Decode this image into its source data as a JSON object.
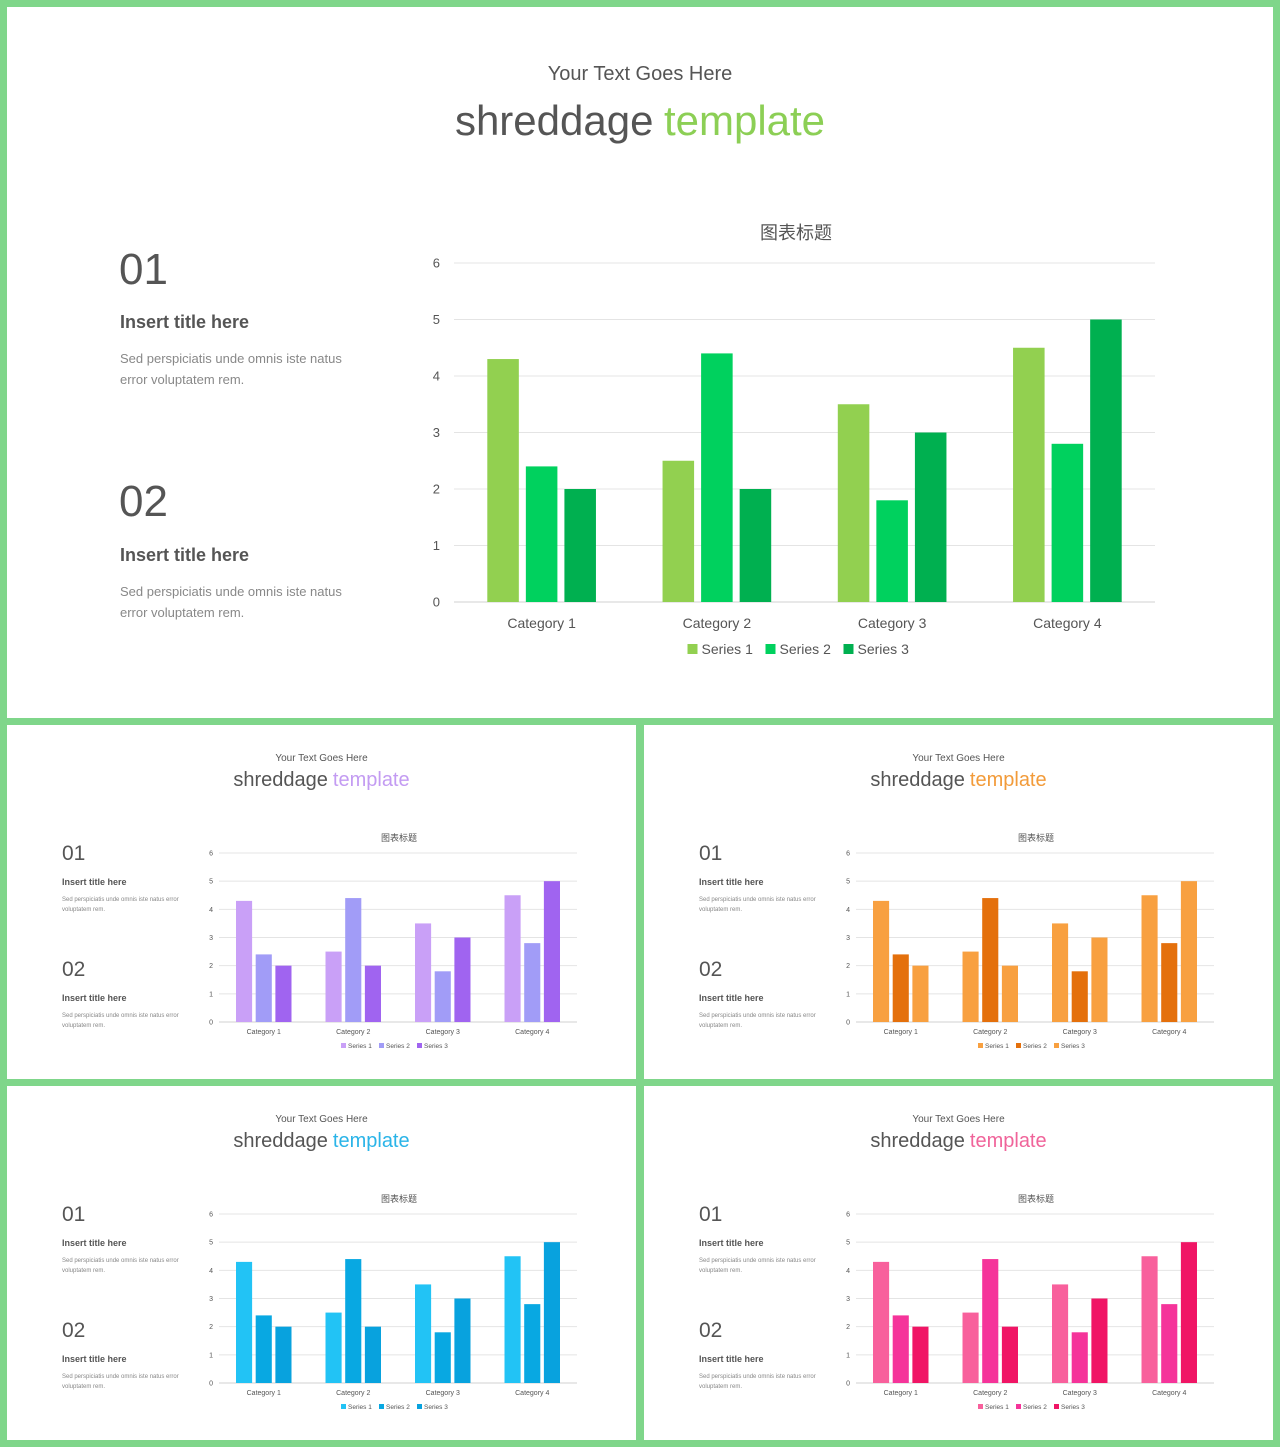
{
  "slides": [
    {
      "subtitle": "Your Text Goes Here",
      "title_main": "shreddage",
      "title_accent": "template",
      "item1_num": "01",
      "item1_title": "Insert title here",
      "item1_text": "Sed perspiciatis unde omnis iste natus error voluptatem rem.",
      "item2_num": "02",
      "item2_title": "Insert title here",
      "item2_text": "Sed perspiciatis unde omnis iste natus error voluptatem rem.",
      "colors": {
        "accent": "#8ccf55",
        "series": [
          "#92d050",
          "#00d15e",
          "#00b050"
        ]
      }
    },
    {
      "subtitle": "Your Text Goes Here",
      "title_main": "shreddage",
      "title_accent": "template",
      "item1_num": "01",
      "item1_title": "Insert title here",
      "item1_text": "Sed perspiciatis unde omnis iste natus error voluptatem rem.",
      "item2_num": "02",
      "item2_title": "Insert title here",
      "item2_text": "Sed perspiciatis unde omnis iste natus error voluptatem rem.",
      "colors": {
        "accent": "#c39bf2",
        "series": [
          "#c9a0f7",
          "#a19cf7",
          "#a064f0"
        ]
      }
    },
    {
      "subtitle": "Your Text Goes Here",
      "title_main": "shreddage",
      "title_accent": "template",
      "item1_num": "01",
      "item1_title": "Insert title here",
      "item1_text": "Sed perspiciatis unde omnis iste natus error voluptatem rem.",
      "item2_num": "02",
      "item2_title": "Insert title here",
      "item2_text": "Sed perspiciatis unde omnis iste natus error voluptatem rem.",
      "colors": {
        "accent": "#f29b3a",
        "series": [
          "#f8a040",
          "#e4700c",
          "#f8a040"
        ]
      }
    },
    {
      "subtitle": "Your Text Goes Here",
      "title_main": "shreddage",
      "title_accent": "template",
      "item1_num": "01",
      "item1_title": "Insert title here",
      "item1_text": "Sed perspiciatis unde omnis iste natus error voluptatem rem.",
      "item2_num": "02",
      "item2_title": "Insert title here",
      "item2_text": "Sed perspiciatis unde omnis iste natus error voluptatem rem.",
      "colors": {
        "accent": "#2ab4e8",
        "series": [
          "#22c3f5",
          "#08a8e2",
          "#08a2de"
        ]
      }
    },
    {
      "subtitle": "Your Text Goes Here",
      "title_main": "shreddage",
      "title_accent": "template",
      "item1_num": "01",
      "item1_title": "Insert title here",
      "item1_text": "Sed perspiciatis unde omnis iste natus error voluptatem rem.",
      "item2_num": "02",
      "item2_title": "Insert title here",
      "item2_text": "Sed perspiciatis unde omnis iste natus error voluptatem rem.",
      "colors": {
        "accent": "#f0649a",
        "series": [
          "#f8609c",
          "#f5349a",
          "#f01565"
        ]
      }
    }
  ],
  "chart_data": [
    {
      "type": "bar",
      "title": "图表标题",
      "categories": [
        "Category 1",
        "Category 2",
        "Category 3",
        "Category 4"
      ],
      "series": [
        {
          "name": "Series 1",
          "values": [
            4.3,
            2.5,
            3.5,
            4.5
          ]
        },
        {
          "name": "Series 2",
          "values": [
            2.4,
            4.4,
            1.8,
            2.8
          ]
        },
        {
          "name": "Series 3",
          "values": [
            2.0,
            2.0,
            3.0,
            5.0
          ]
        }
      ],
      "ylim": [
        0,
        6
      ],
      "yticks": [
        0,
        1,
        2,
        3,
        4,
        5,
        6
      ],
      "grid": true,
      "legend": "bottom"
    },
    {
      "type": "bar",
      "title": "图表标题",
      "categories": [
        "Category 1",
        "Category 2",
        "Category 3",
        "Category 4"
      ],
      "series": [
        {
          "name": "Series 1",
          "values": [
            4.3,
            2.5,
            3.5,
            4.5
          ]
        },
        {
          "name": "Series 2",
          "values": [
            2.4,
            4.4,
            1.8,
            2.8
          ]
        },
        {
          "name": "Series 3",
          "values": [
            2.0,
            2.0,
            3.0,
            5.0
          ]
        }
      ],
      "ylim": [
        0,
        6
      ],
      "yticks": [
        0,
        1,
        2,
        3,
        4,
        5,
        6
      ],
      "grid": true,
      "legend": "bottom"
    },
    {
      "type": "bar",
      "title": "图表标题",
      "categories": [
        "Category 1",
        "Category 2",
        "Category 3",
        "Category 4"
      ],
      "series": [
        {
          "name": "Series 1",
          "values": [
            4.3,
            2.5,
            3.5,
            4.5
          ]
        },
        {
          "name": "Series 2",
          "values": [
            2.4,
            4.4,
            1.8,
            2.8
          ]
        },
        {
          "name": "Series 3",
          "values": [
            2.0,
            2.0,
            3.0,
            5.0
          ]
        }
      ],
      "ylim": [
        0,
        6
      ],
      "yticks": [
        0,
        1,
        2,
        3,
        4,
        5,
        6
      ],
      "grid": true,
      "legend": "bottom"
    },
    {
      "type": "bar",
      "title": "图表标题",
      "categories": [
        "Category 1",
        "Category 2",
        "Category 3",
        "Category 4"
      ],
      "series": [
        {
          "name": "Series 1",
          "values": [
            4.3,
            2.5,
            3.5,
            4.5
          ]
        },
        {
          "name": "Series 2",
          "values": [
            2.4,
            4.4,
            1.8,
            2.8
          ]
        },
        {
          "name": "Series 3",
          "values": [
            2.0,
            2.0,
            3.0,
            5.0
          ]
        }
      ],
      "ylim": [
        0,
        6
      ],
      "yticks": [
        0,
        1,
        2,
        3,
        4,
        5,
        6
      ],
      "grid": true,
      "legend": "bottom"
    },
    {
      "type": "bar",
      "title": "图表标题",
      "categories": [
        "Category 1",
        "Category 2",
        "Category 3",
        "Category 4"
      ],
      "series": [
        {
          "name": "Series 1",
          "values": [
            4.3,
            2.5,
            3.5,
            4.5
          ]
        },
        {
          "name": "Series 2",
          "values": [
            2.4,
            4.4,
            1.8,
            2.8
          ]
        },
        {
          "name": "Series 3",
          "values": [
            2.0,
            2.0,
            3.0,
            5.0
          ]
        }
      ],
      "ylim": [
        0,
        6
      ],
      "yticks": [
        0,
        1,
        2,
        3,
        4,
        5,
        6
      ],
      "grid": true,
      "legend": "bottom"
    }
  ]
}
